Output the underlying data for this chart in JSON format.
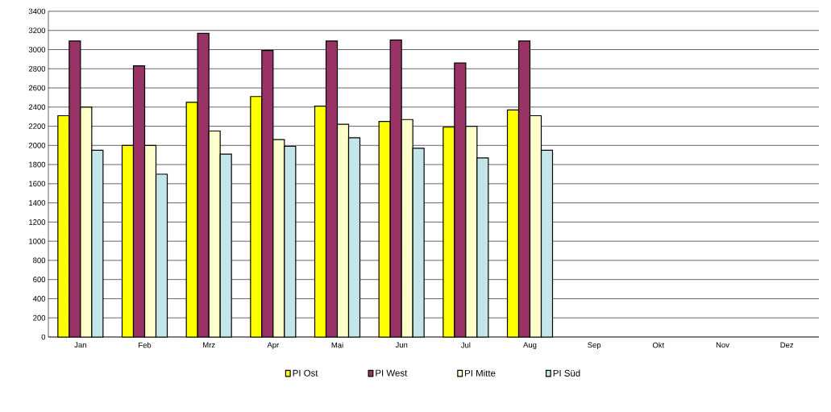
{
  "chart_data": {
    "type": "bar",
    "categories": [
      "Jan",
      "Feb",
      "Mrz",
      "Apr",
      "Mai",
      "Jun",
      "Jul",
      "Aug",
      "Sep",
      "Okt",
      "Nov",
      "Dez"
    ],
    "series": [
      {
        "name": "PI Ost",
        "color": "#ffff00",
        "values": [
          2310,
          2000,
          2450,
          2510,
          2410,
          2250,
          2190,
          2370,
          null,
          null,
          null,
          null
        ]
      },
      {
        "name": "PI West",
        "color": "#993366",
        "values": [
          3090,
          2830,
          3170,
          2990,
          3090,
          3100,
          2860,
          3090,
          null,
          null,
          null,
          null
        ]
      },
      {
        "name": "PI Mitte",
        "color": "#ffffcc",
        "values": [
          2400,
          2000,
          2150,
          2060,
          2220,
          2270,
          2200,
          2310,
          null,
          null,
          null,
          null
        ]
      },
      {
        "name": "PI Süd",
        "color": "#c4e6ea",
        "values": [
          1950,
          1700,
          1910,
          1990,
          2080,
          1970,
          1870,
          1950,
          null,
          null,
          null,
          null
        ]
      }
    ],
    "ylim": [
      0,
      3400
    ],
    "yticks": [
      0,
      200,
      400,
      600,
      800,
      1000,
      1200,
      1400,
      1600,
      1800,
      2000,
      2200,
      2400,
      2600,
      2800,
      3000,
      3200,
      3400
    ],
    "grid": "y",
    "legend": "bottom"
  }
}
